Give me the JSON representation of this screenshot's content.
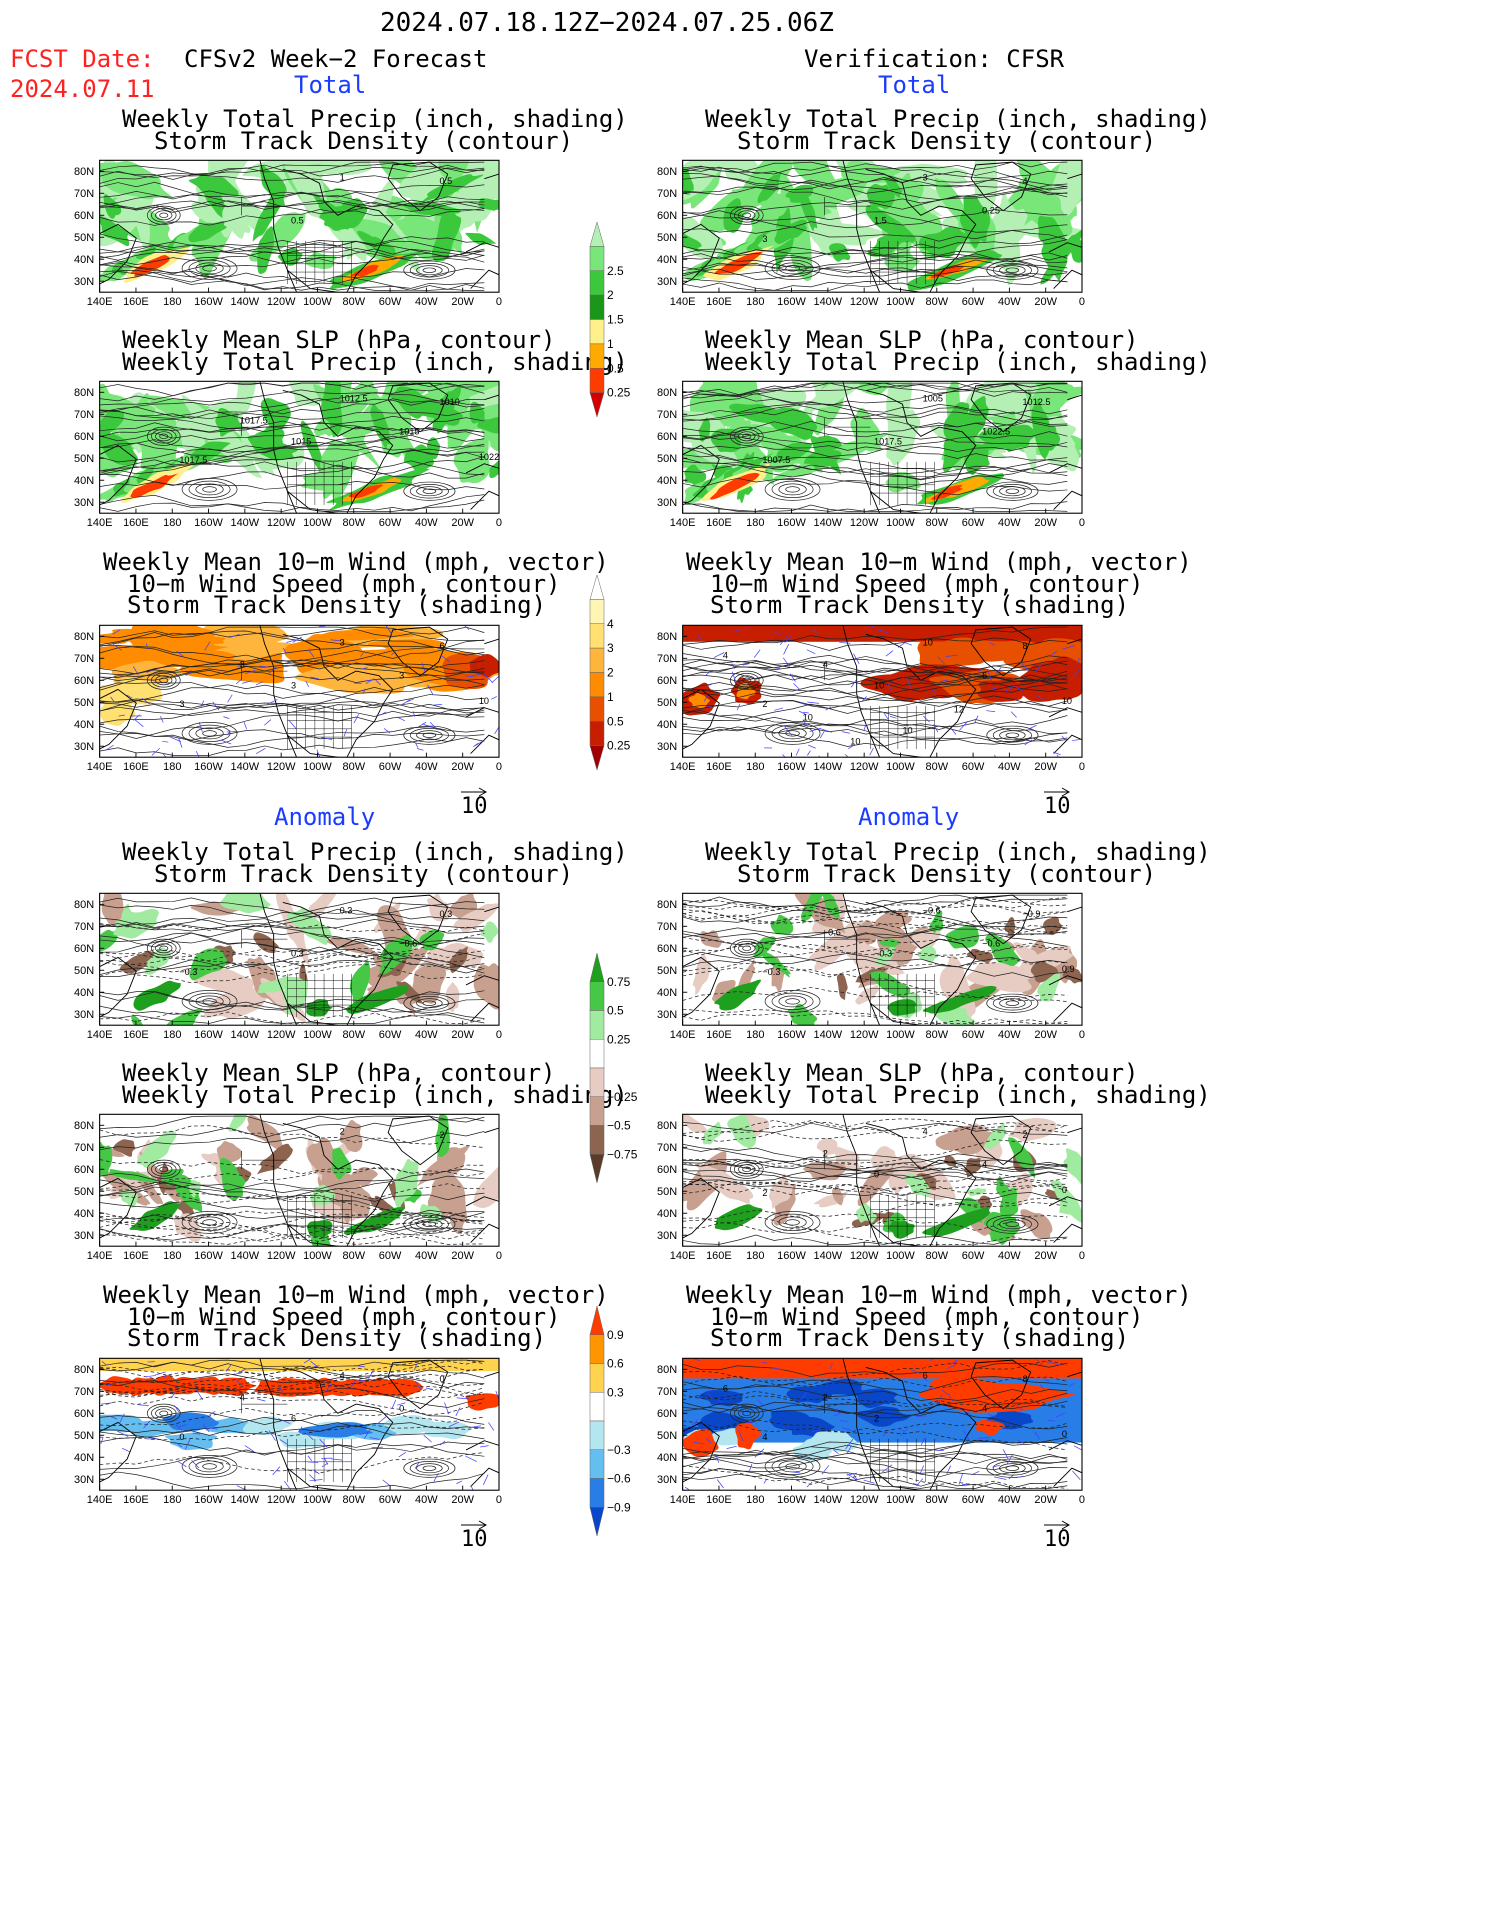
{
  "header": {
    "date_range": "2024.07.18.12Z−2024.07.25.06Z",
    "fcst_label": "FCST Date:",
    "fcst_date": "2024.07.11",
    "left_title": "CFSv2 Week−2 Forecast",
    "right_title": "Verification: CFSR",
    "total": "Total",
    "anomaly": "Anomaly"
  },
  "panel_titles": {
    "precip_storm": [
      "Weekly Total Precip (inch, shading)",
      "Storm Track Density (contour)"
    ],
    "slp_precip": [
      "Weekly Mean SLP (hPa, contour)",
      "Weekly Total Precip (inch, shading)"
    ],
    "wind_storm": [
      "Weekly Mean 10−m Wind (mph, vector)",
      "10−m Wind Speed (mph, contour)",
      "Storm Track Density (shading)"
    ]
  },
  "axes": {
    "lat_labels": [
      "80N",
      "70N",
      "60N",
      "50N",
      "40N",
      "30N"
    ],
    "lon_labels": [
      "140E",
      "160E",
      "180",
      "160W",
      "140W",
      "120W",
      "100W",
      "80W",
      "60W",
      "40W",
      "20W",
      "0"
    ]
  },
  "vector_ref": "10",
  "colorbars": {
    "precip_total": {
      "labels": [
        "0.25",
        "0.5",
        "1",
        "1.5",
        "2",
        "2.5"
      ],
      "colors": [
        "#b4f0b4",
        "#78e678",
        "#3cc83c",
        "#1a961a",
        "#fff08c",
        "#ffaa00",
        "#ff3c00",
        "#d20000"
      ]
    },
    "storm_total": {
      "labels": [
        "0.25",
        "0.5",
        "1",
        "2",
        "3",
        "4"
      ],
      "colors": [
        "#ffffff",
        "#fff5b4",
        "#ffe070",
        "#ffb43c",
        "#ff8c00",
        "#e65000",
        "#c81e00",
        "#a00000"
      ]
    },
    "precip_anom": {
      "labels": [
        "0.75",
        "0.5",
        "0.25",
        "−0.25",
        "−0.5",
        "−0.75"
      ],
      "colors": [
        "#1ea01e",
        "#46c846",
        "#a0eba0",
        "#ffffff",
        "#e6ccc2",
        "#c8a090",
        "#8c6450",
        "#5a3a28"
      ]
    },
    "storm_anom": {
      "labels": [
        "0.9",
        "0.6",
        "0.3",
        "−0.3",
        "−0.6",
        "−0.9"
      ],
      "colors": [
        "#ff3c00",
        "#ff9600",
        "#ffd250",
        "#ffffff",
        "#b4e6f0",
        "#64bef0",
        "#287ee6",
        "#0a46c8"
      ]
    }
  },
  "contour_labels": {
    "L1": [
      "1",
      "0.5",
      "0.5"
    ],
    "R1": [
      "3",
      "4",
      "1.5",
      "3",
      "0.25"
    ],
    "L2": [
      "1012.5",
      "1010",
      "1015",
      "1017.5",
      "1015",
      "1017.5",
      "1022.5"
    ],
    "R2": [
      "1005",
      "1012.5",
      "1017.5",
      "1007.5",
      "1022.5"
    ],
    "L3": [
      "3",
      "6",
      "3",
      "3",
      "3",
      "3",
      "10"
    ],
    "R3": [
      "10",
      "8",
      "10",
      "2",
      "6",
      "4",
      "10",
      "4",
      "10",
      "10",
      "12",
      "10"
    ],
    "L4": [
      "0.3",
      "0.3",
      "0.3",
      "−0.3",
      "−0.6"
    ],
    "R4": [
      "−0.6",
      "−0.9",
      "−0.3",
      "−0.3",
      "−0.6",
      "−0.6",
      "0.9"
    ],
    "L5": [
      "2",
      "2"
    ],
    "R5": [
      "4",
      "2",
      "0",
      "2",
      "4",
      "2",
      "0"
    ],
    "L6": [
      "4",
      "0",
      "6",
      "0",
      "0",
      "4"
    ],
    "R6": [
      "6",
      "8",
      "2",
      "4",
      "4",
      "2",
      "0",
      "6"
    ]
  }
}
